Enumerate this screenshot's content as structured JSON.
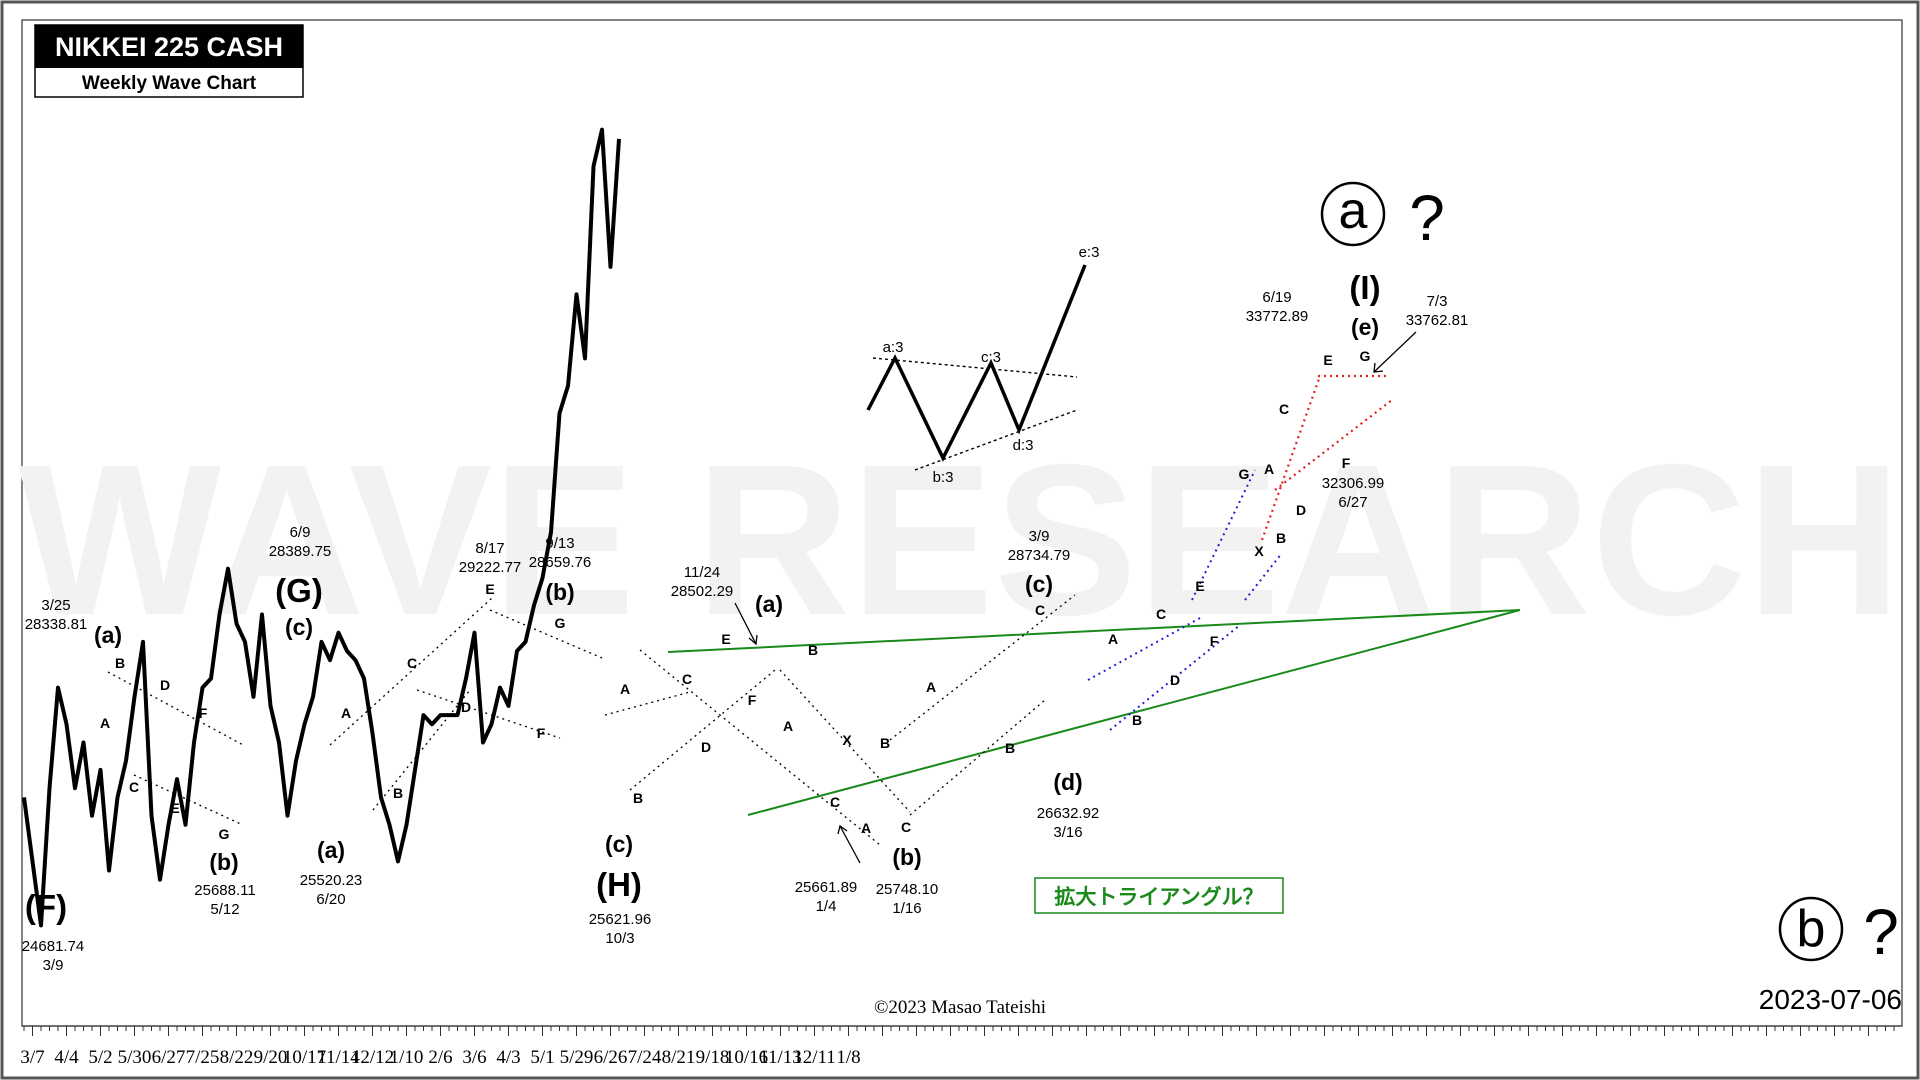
{
  "title_box": {
    "title": "NIKKEI 225 CASH",
    "subtitle": "Weekly Wave Chart"
  },
  "watermark": "WAVE RESEARCH",
  "copyright": "©2023 Masao Tateishi",
  "date": "2023-07-06",
  "circle_a": {
    "glyph": "a",
    "q": "?"
  },
  "circle_b": {
    "glyph": "b",
    "q": "?"
  },
  "triangle_note": "拡大トライアングル？",
  "colors": {
    "price": "#000000",
    "green": "#1a8a1a",
    "red": "#e02020",
    "blue": "#2020d0"
  },
  "chart_data": {
    "type": "line",
    "title": "NIKKEI 225 CASH",
    "subtitle": "Weekly Wave Chart",
    "xlabel": "",
    "ylabel": "",
    "x_ticks": [
      "3/7",
      "4/4",
      "5/2",
      "5/30",
      "6/27",
      "7/25",
      "8/22",
      "9/20",
      "10/17",
      "11/14",
      "12/12",
      "1/10",
      "2/6",
      "3/6",
      "4/3",
      "5/1",
      "5/29",
      "6/26",
      "7/24",
      "8/21",
      "9/18",
      "10/16",
      "11/13",
      "12/11",
      "1/8"
    ],
    "ylim": [
      24000,
      35000
    ],
    "grid": false,
    "series": [
      {
        "name": "",
        "x": [
          "2022-02-28",
          "2022-03-07",
          "2022-03-14",
          "2022-03-21",
          "2022-03-28",
          "2022-04-04",
          "2022-04-11",
          "2022-04-18",
          "2022-04-25",
          "2022-05-02",
          "2022-05-09",
          "2022-05-16",
          "2022-05-23",
          "2022-05-30",
          "2022-06-06",
          "2022-06-13",
          "2022-06-20",
          "2022-06-27",
          "2022-07-04",
          "2022-07-11",
          "2022-07-18",
          "2022-07-25",
          "2022-08-01",
          "2022-08-08",
          "2022-08-15",
          "2022-08-22",
          "2022-08-29",
          "2022-09-05",
          "2022-09-12",
          "2022-09-19",
          "2022-09-26",
          "2022-10-03",
          "2022-10-10",
          "2022-10-17",
          "2022-10-24",
          "2022-10-31",
          "2022-11-07",
          "2022-11-14",
          "2022-11-21",
          "2022-11-28",
          "2022-12-05",
          "2022-12-12",
          "2022-12-19",
          "2022-12-26",
          "2023-01-02",
          "2023-01-09",
          "2023-01-16",
          "2023-01-23",
          "2023-01-30",
          "2023-02-06",
          "2023-02-13",
          "2023-02-20",
          "2023-02-27",
          "2023-03-06",
          "2023-03-13",
          "2023-03-20",
          "2023-03-27",
          "2023-04-03",
          "2023-04-10",
          "2023-04-17",
          "2023-04-24",
          "2023-05-01",
          "2023-05-08",
          "2023-05-15",
          "2023-05-22",
          "2023-05-29",
          "2023-06-05",
          "2023-06-12",
          "2023-06-19",
          "2023-06-26",
          "2023-07-03"
        ],
        "values": [
          26500,
          25800,
          25100,
          26600,
          27700,
          27300,
          26600,
          27100,
          26300,
          26800,
          25700,
          26500,
          26900,
          27600,
          28200,
          26300,
          25600,
          26200,
          26700,
          26200,
          27100,
          27700,
          27800,
          28500,
          29000,
          28400,
          28200,
          27600,
          28500,
          27500,
          27100,
          26300,
          26900,
          27300,
          27600,
          28200,
          28000,
          28300,
          28100,
          28000,
          27800,
          27200,
          26500,
          26200,
          25800,
          26200,
          26800,
          27400,
          27300,
          27400,
          27400,
          27400,
          27800,
          28300,
          27100,
          27300,
          27700,
          27500,
          28100,
          28200,
          28600,
          28900,
          29400,
          30700,
          31000,
          32000,
          31300,
          33400,
          33800,
          32300,
          33700
        ]
      }
    ],
    "wave_labels": [
      {
        "x": "2022-03-09",
        "y": 24681.74,
        "label": "(F)",
        "date": "3/9",
        "price": "24681.74"
      },
      {
        "x": "2022-03-25",
        "y": 28338.81,
        "label": "(a)",
        "date": "3/25",
        "price": "28338.81"
      },
      {
        "x": "2022-05-12",
        "y": 25688.11,
        "label": "(b)",
        "date": "5/12",
        "price": "25688.11"
      },
      {
        "x": "2022-06-09",
        "y": 28389.75,
        "label": "(c) (G)",
        "date": "6/9",
        "price": "28389.75"
      },
      {
        "x": "2022-06-20",
        "y": 25520.23,
        "label": "(a)",
        "date": "6/20",
        "price": "25520.23"
      },
      {
        "x": "2022-08-17",
        "y": 29222.77,
        "label": "E",
        "date": "8/17",
        "price": "29222.77"
      },
      {
        "x": "2022-09-13",
        "y": 28659.76,
        "label": "(b)",
        "date": "9/13",
        "price": "28659.76"
      },
      {
        "x": "2022-10-03",
        "y": 25621.96,
        "label": "(c) (H)",
        "date": "10/3",
        "price": "25621.96"
      },
      {
        "x": "2022-11-24",
        "y": 28502.29,
        "label": "(a)",
        "date": "11/24",
        "price": "28502.29"
      },
      {
        "x": "2023-01-04",
        "y": 25661.89,
        "label": "A",
        "date": "1/4",
        "price": "25661.89"
      },
      {
        "x": "2023-01-16",
        "y": 25748.1,
        "label": "(b)",
        "date": "1/16",
        "price": "25748.10"
      },
      {
        "x": "2023-03-09",
        "y": 28734.79,
        "label": "(c)",
        "date": "3/9",
        "price": "28734.79"
      },
      {
        "x": "2023-03-16",
        "y": 26632.92,
        "label": "(d)",
        "date": "3/16",
        "price": "26632.92"
      },
      {
        "x": "2023-06-19",
        "y": 33772.89,
        "label": "E",
        "date": "6/19",
        "price": "33772.89"
      },
      {
        "x": "2023-06-27",
        "y": 32306.99,
        "label": "F",
        "date": "6/27",
        "price": "32306.99"
      },
      {
        "x": "2023-07-03",
        "y": 33762.81,
        "label": "(e) (I)",
        "date": "7/3",
        "price": "33762.81"
      }
    ],
    "inset_labels": [
      "a:3",
      "b:3",
      "c:3",
      "d:3",
      "e:3"
    ],
    "letter_labels": [
      "A",
      "B",
      "C",
      "D",
      "E",
      "F",
      "G",
      "X"
    ]
  }
}
